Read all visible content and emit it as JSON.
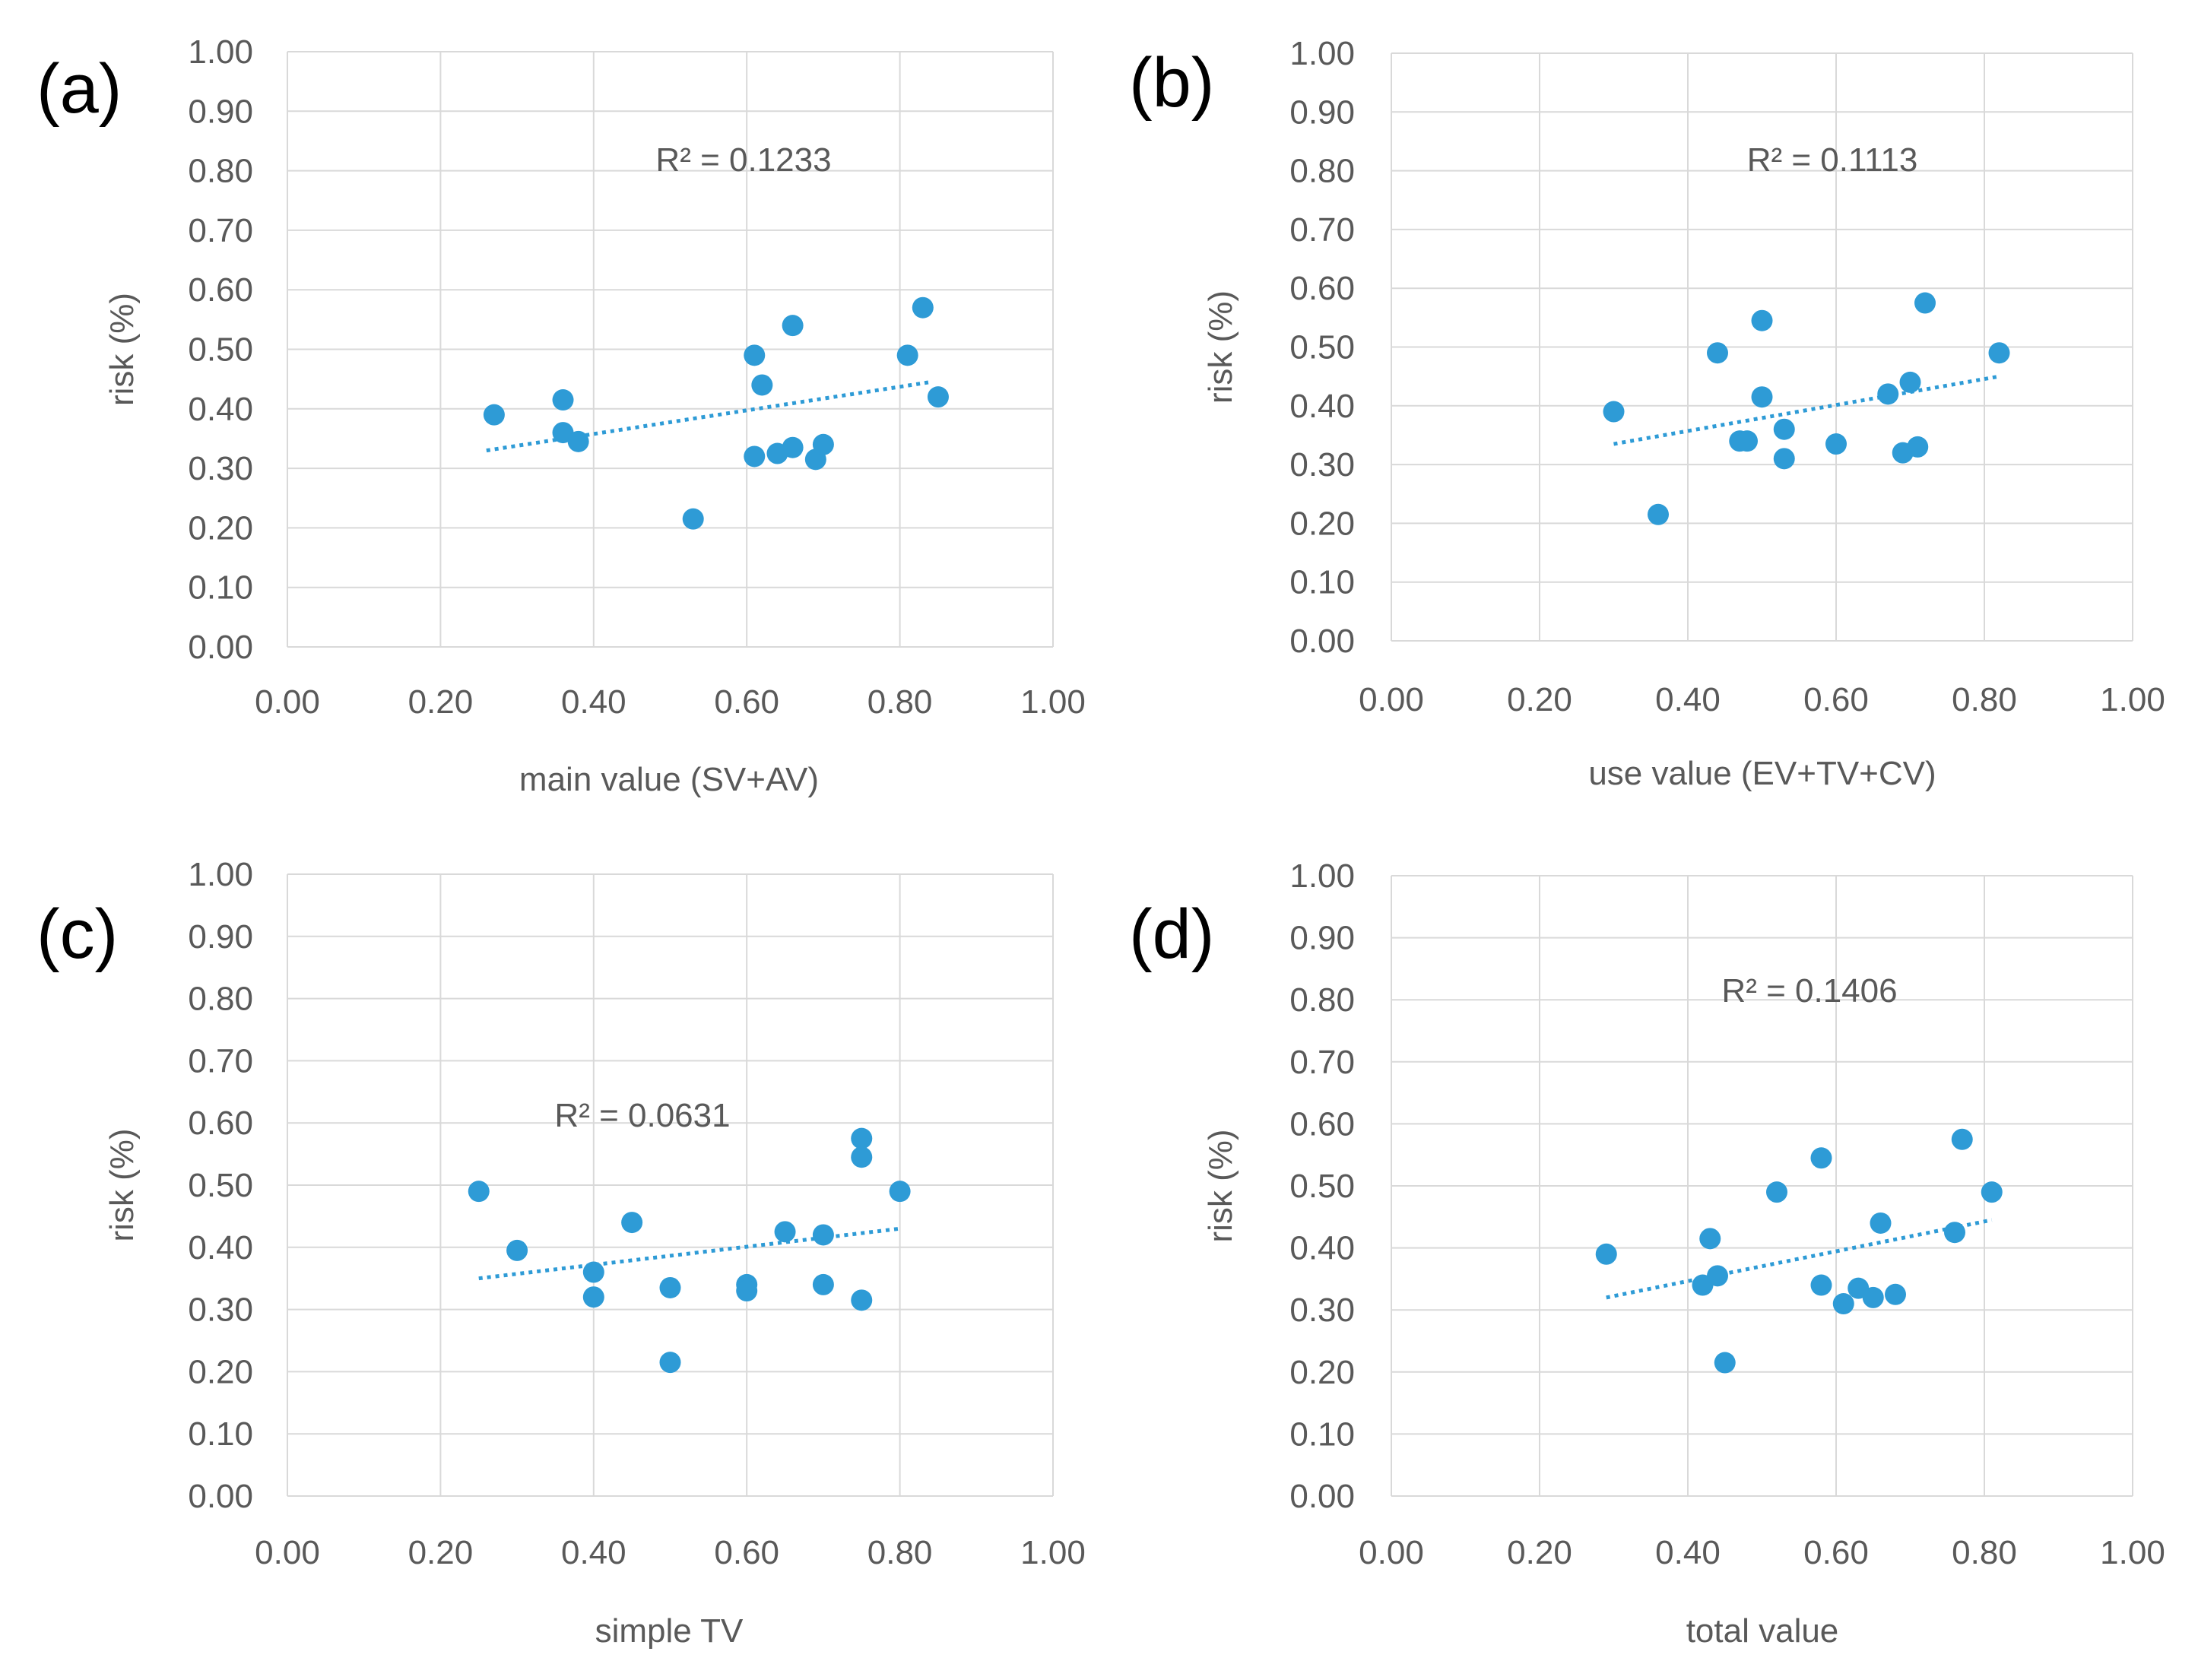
{
  "chart_data": [
    {
      "type": "scatter",
      "panel": "(a)",
      "xlabel": "main value (SV+AV)",
      "ylabel": "risk (%)",
      "xlim": [
        0,
        1
      ],
      "ylim": [
        0,
        1
      ],
      "xticks": [
        "0.00",
        "0.20",
        "0.40",
        "0.60",
        "0.80",
        "1.00"
      ],
      "yticks": [
        "0.00",
        "0.10",
        "0.20",
        "0.30",
        "0.40",
        "0.50",
        "0.60",
        "0.70",
        "0.80",
        "0.90",
        "1.00"
      ],
      "r2_label": "R² = 0.1233",
      "marker_color": "#2e9bd6",
      "points": [
        {
          "x": 0.27,
          "y": 0.39
        },
        {
          "x": 0.36,
          "y": 0.415
        },
        {
          "x": 0.36,
          "y": 0.36
        },
        {
          "x": 0.38,
          "y": 0.345
        },
        {
          "x": 0.53,
          "y": 0.215
        },
        {
          "x": 0.61,
          "y": 0.49
        },
        {
          "x": 0.62,
          "y": 0.44
        },
        {
          "x": 0.61,
          "y": 0.32
        },
        {
          "x": 0.64,
          "y": 0.325
        },
        {
          "x": 0.66,
          "y": 0.54
        },
        {
          "x": 0.66,
          "y": 0.335
        },
        {
          "x": 0.69,
          "y": 0.315
        },
        {
          "x": 0.7,
          "y": 0.34
        },
        {
          "x": 0.81,
          "y": 0.49
        },
        {
          "x": 0.83,
          "y": 0.57
        },
        {
          "x": 0.85,
          "y": 0.42
        }
      ],
      "trendline": {
        "x": [
          0.26,
          0.84
        ],
        "y": [
          0.33,
          0.445
        ]
      }
    },
    {
      "type": "scatter",
      "panel": "(b)",
      "xlabel": "use value (EV+TV+CV)",
      "ylabel": "risk (%)",
      "xlim": [
        0,
        1
      ],
      "ylim": [
        0,
        1
      ],
      "xticks": [
        "0.00",
        "0.20",
        "0.40",
        "0.60",
        "0.80",
        "1.00"
      ],
      "yticks": [
        "0.00",
        "0.10",
        "0.20",
        "0.30",
        "0.40",
        "0.50",
        "0.60",
        "0.70",
        "0.80",
        "0.90",
        "1.00"
      ],
      "r2_label": "R² = 0.1113",
      "marker_color": "#2e9bd6",
      "points": [
        {
          "x": 0.3,
          "y": 0.39
        },
        {
          "x": 0.36,
          "y": 0.215
        },
        {
          "x": 0.44,
          "y": 0.49
        },
        {
          "x": 0.47,
          "y": 0.34
        },
        {
          "x": 0.48,
          "y": 0.34
        },
        {
          "x": 0.5,
          "y": 0.545
        },
        {
          "x": 0.5,
          "y": 0.415
        },
        {
          "x": 0.53,
          "y": 0.36
        },
        {
          "x": 0.53,
          "y": 0.31
        },
        {
          "x": 0.6,
          "y": 0.335
        },
        {
          "x": 0.67,
          "y": 0.42
        },
        {
          "x": 0.69,
          "y": 0.32
        },
        {
          "x": 0.7,
          "y": 0.44
        },
        {
          "x": 0.71,
          "y": 0.33
        },
        {
          "x": 0.72,
          "y": 0.575
        },
        {
          "x": 0.82,
          "y": 0.49
        }
      ],
      "trendline": {
        "x": [
          0.3,
          0.82
        ],
        "y": [
          0.335,
          0.45
        ]
      }
    },
    {
      "type": "scatter",
      "panel": "(c)",
      "xlabel": "simple TV",
      "ylabel": "risk (%)",
      "xlim": [
        0,
        1
      ],
      "ylim": [
        0,
        1
      ],
      "xticks": [
        "0.00",
        "0.20",
        "0.40",
        "0.60",
        "0.80",
        "1.00"
      ],
      "yticks": [
        "0.00",
        "0.10",
        "0.20",
        "0.30",
        "0.40",
        "0.50",
        "0.60",
        "0.70",
        "0.80",
        "0.90",
        "1.00"
      ],
      "r2_label": "R² = 0.0631",
      "marker_color": "#2e9bd6",
      "points": [
        {
          "x": 0.25,
          "y": 0.49
        },
        {
          "x": 0.3,
          "y": 0.395
        },
        {
          "x": 0.4,
          "y": 0.36
        },
        {
          "x": 0.4,
          "y": 0.32
        },
        {
          "x": 0.45,
          "y": 0.44
        },
        {
          "x": 0.5,
          "y": 0.335
        },
        {
          "x": 0.5,
          "y": 0.215
        },
        {
          "x": 0.6,
          "y": 0.34
        },
        {
          "x": 0.6,
          "y": 0.33
        },
        {
          "x": 0.65,
          "y": 0.425
        },
        {
          "x": 0.7,
          "y": 0.42
        },
        {
          "x": 0.7,
          "y": 0.34
        },
        {
          "x": 0.75,
          "y": 0.575
        },
        {
          "x": 0.75,
          "y": 0.545
        },
        {
          "x": 0.75,
          "y": 0.315
        },
        {
          "x": 0.8,
          "y": 0.49
        }
      ],
      "trendline": {
        "x": [
          0.25,
          0.8
        ],
        "y": [
          0.35,
          0.43
        ]
      }
    },
    {
      "type": "scatter",
      "panel": "(d)",
      "xlabel": "total value",
      "ylabel": "risk (%)",
      "xlim": [
        0,
        1
      ],
      "ylim": [
        0,
        1
      ],
      "xticks": [
        "0.00",
        "0.20",
        "0.40",
        "0.60",
        "0.80",
        "1.00"
      ],
      "yticks": [
        "0.00",
        "0.10",
        "0.20",
        "0.30",
        "0.40",
        "0.50",
        "0.60",
        "0.70",
        "0.80",
        "0.90",
        "1.00"
      ],
      "r2_label": "R² = 0.1406",
      "marker_color": "#2e9bd6",
      "points": [
        {
          "x": 0.29,
          "y": 0.39
        },
        {
          "x": 0.42,
          "y": 0.34
        },
        {
          "x": 0.43,
          "y": 0.415
        },
        {
          "x": 0.44,
          "y": 0.355
        },
        {
          "x": 0.45,
          "y": 0.215
        },
        {
          "x": 0.52,
          "y": 0.49
        },
        {
          "x": 0.58,
          "y": 0.545
        },
        {
          "x": 0.58,
          "y": 0.34
        },
        {
          "x": 0.61,
          "y": 0.31
        },
        {
          "x": 0.63,
          "y": 0.335
        },
        {
          "x": 0.65,
          "y": 0.32
        },
        {
          "x": 0.66,
          "y": 0.44
        },
        {
          "x": 0.68,
          "y": 0.325
        },
        {
          "x": 0.76,
          "y": 0.425
        },
        {
          "x": 0.77,
          "y": 0.575
        },
        {
          "x": 0.81,
          "y": 0.49
        }
      ],
      "trendline": {
        "x": [
          0.29,
          0.81
        ],
        "y": [
          0.32,
          0.445
        ]
      }
    }
  ]
}
